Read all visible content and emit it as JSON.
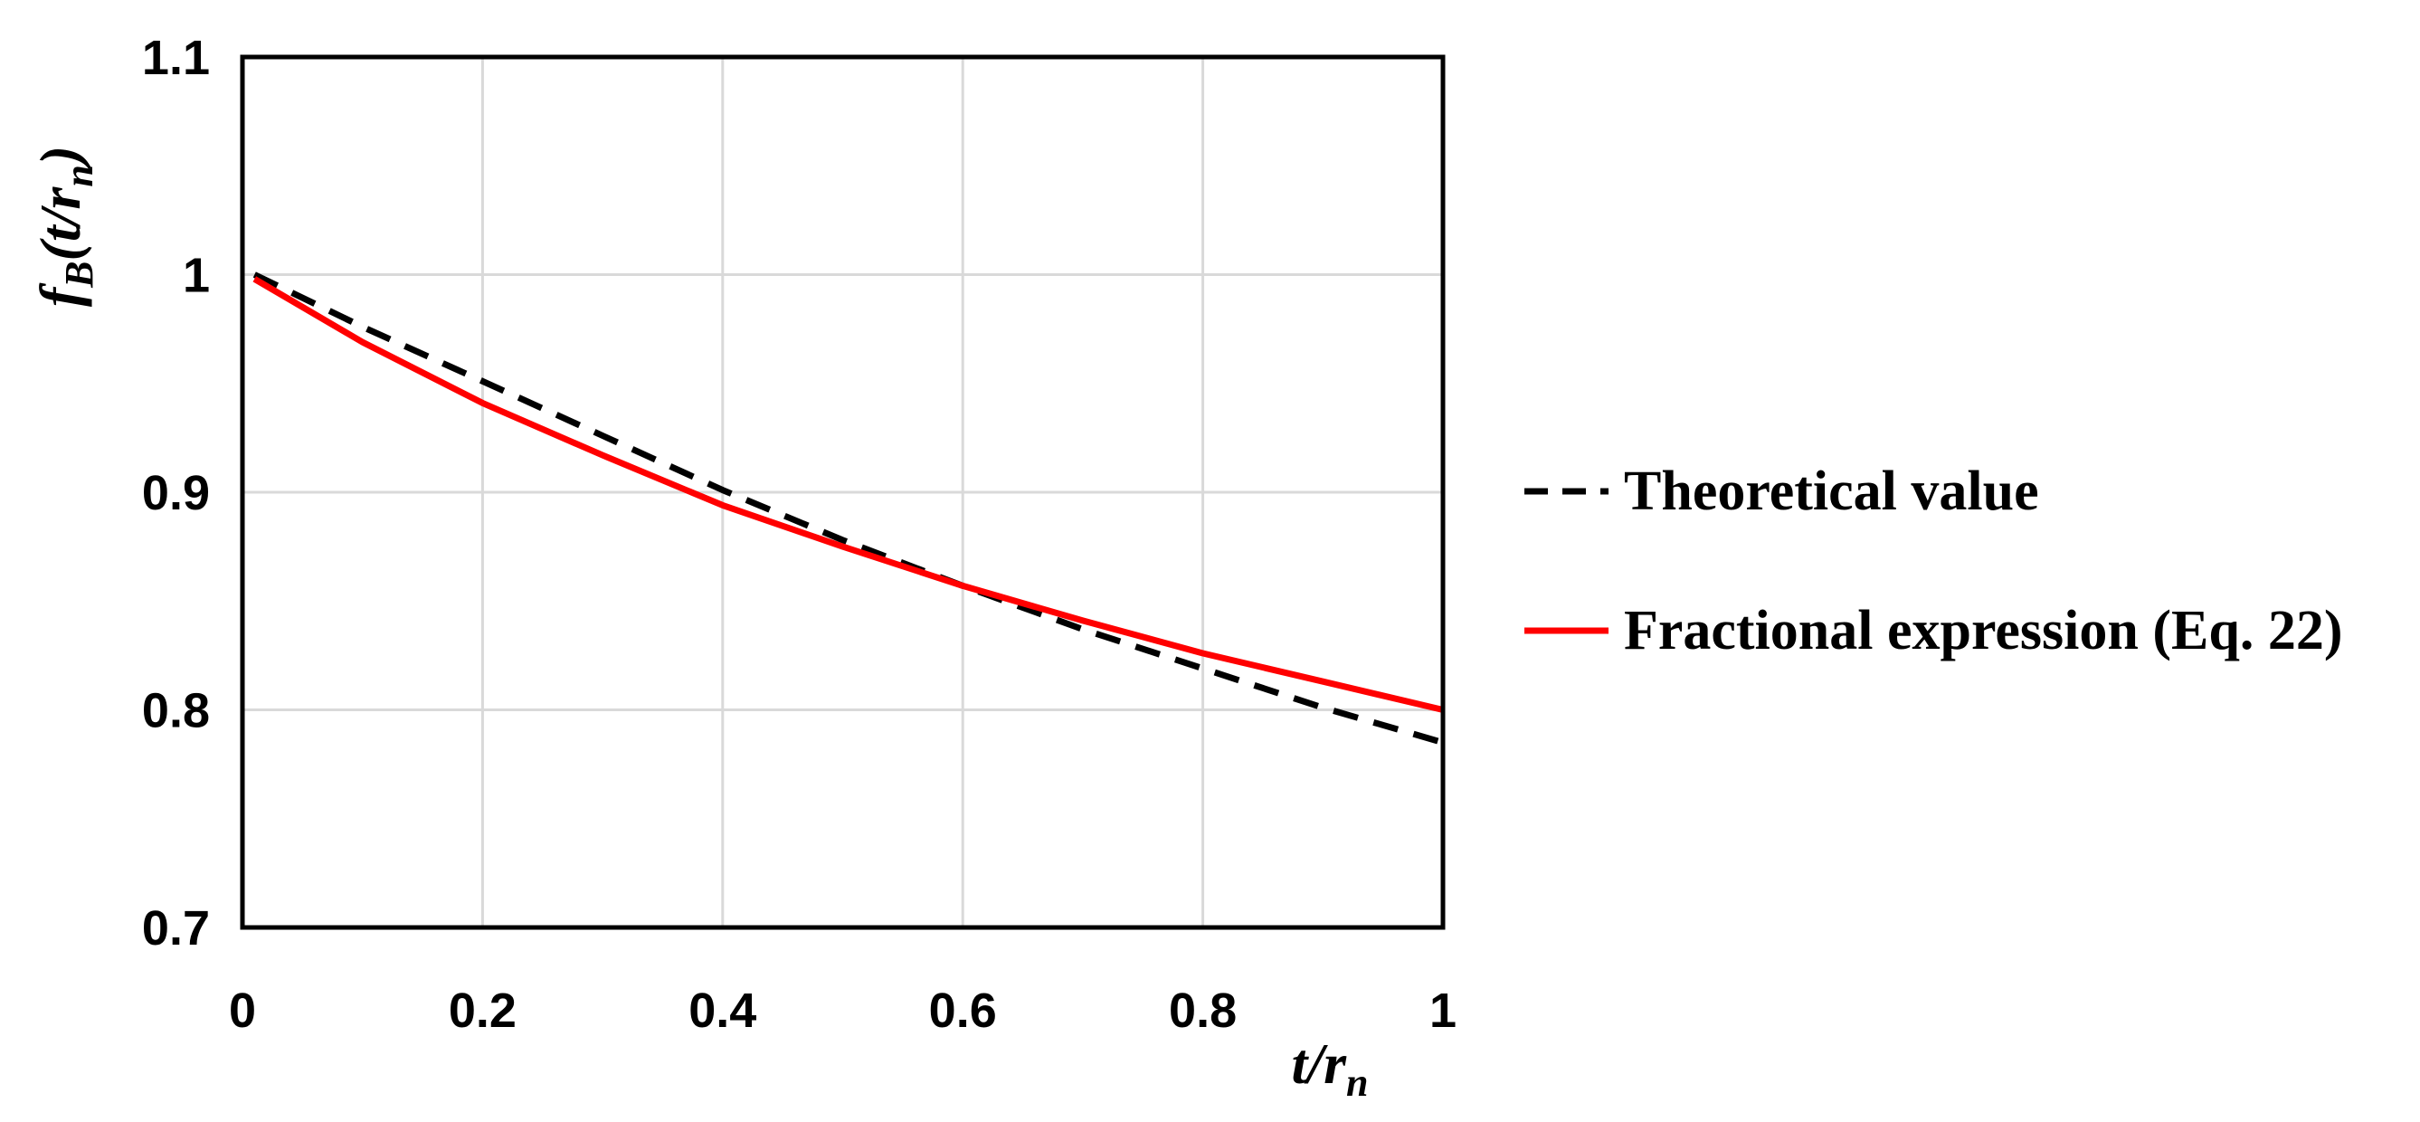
{
  "chart_data": {
    "type": "line",
    "xlim": [
      0,
      1
    ],
    "ylim": [
      0.7,
      1.1
    ],
    "x_ticks": [
      "0",
      "0.2",
      "0.4",
      "0.6",
      "0.8",
      "1"
    ],
    "y_ticks": [
      "0.7",
      "0.8",
      "0.9",
      "1",
      "1.1"
    ],
    "xlabel": {
      "main": "t/r",
      "sub": "n"
    },
    "ylabel": {
      "f": "f",
      "f_sub": "B",
      "arg": "(t/r",
      "arg_sub": "n",
      "close": ")"
    },
    "grid": true,
    "legend_position": "right",
    "series": [
      {
        "name": "Theoretical value",
        "style": "dashed",
        "color": "#000000",
        "x": [
          0.01,
          0.1,
          0.2,
          0.3,
          0.4,
          0.5,
          0.6,
          0.7,
          0.8,
          0.9,
          1.0
        ],
        "y": [
          1.0,
          0.976,
          0.951,
          0.926,
          0.901,
          0.878,
          0.857,
          0.837,
          0.819,
          0.801,
          0.785
        ]
      },
      {
        "name": "Fractional expression (Eq. 22)",
        "style": "solid",
        "color": "#ff0000",
        "x": [
          0.01,
          0.1,
          0.2,
          0.3,
          0.4,
          0.5,
          0.6,
          0.7,
          0.8,
          0.9,
          1.0
        ],
        "y": [
          0.998,
          0.969,
          0.941,
          0.917,
          0.894,
          0.875,
          0.857,
          0.841,
          0.826,
          0.813,
          0.8
        ]
      }
    ]
  }
}
